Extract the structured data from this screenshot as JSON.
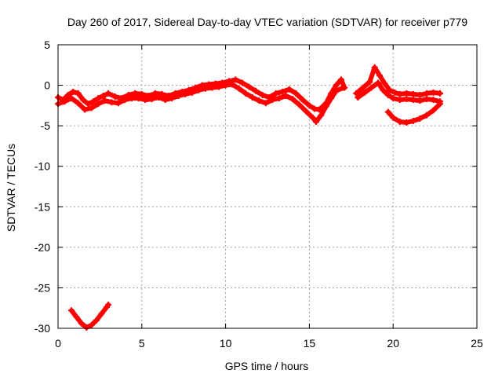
{
  "chart_data": {
    "type": "scatter",
    "title": "Day 260 of 2017, Sidereal Day-to-day VTEC variation (SDTVAR) for receiver p779",
    "xlabel": "GPS time / hours",
    "ylabel": "SDTVAR / TECUs",
    "xlim": [
      0,
      25
    ],
    "ylim": [
      -30,
      5
    ],
    "xticks": [
      0,
      5,
      10,
      15,
      20,
      25
    ],
    "yticks": [
      5,
      0,
      -5,
      -10,
      -15,
      -20,
      -25,
      -30
    ],
    "grid": true,
    "series": [
      {
        "name": "main-track-upper",
        "color": "#ff0000",
        "points": [
          [
            0.0,
            -1.5
          ],
          [
            0.3,
            -1.8
          ],
          [
            0.6,
            -1.2
          ],
          [
            0.9,
            -0.8
          ],
          [
            1.2,
            -1.0
          ],
          [
            1.5,
            -1.8
          ],
          [
            1.8,
            -2.3
          ],
          [
            2.1,
            -2.0
          ],
          [
            2.4,
            -1.6
          ],
          [
            2.7,
            -1.3
          ],
          [
            3.0,
            -1.0
          ],
          [
            3.4,
            -1.4
          ],
          [
            3.8,
            -1.6
          ],
          [
            4.2,
            -1.2
          ],
          [
            4.6,
            -1.0
          ],
          [
            5.0,
            -1.1
          ],
          [
            5.4,
            -1.3
          ],
          [
            5.8,
            -1.0
          ],
          [
            6.2,
            -1.1
          ],
          [
            6.6,
            -1.3
          ],
          [
            7.0,
            -1.0
          ],
          [
            7.4,
            -0.8
          ],
          [
            7.8,
            -0.6
          ],
          [
            8.2,
            -0.3
          ],
          [
            8.6,
            0.0
          ],
          [
            9.0,
            0.1
          ],
          [
            9.4,
            0.2
          ],
          [
            9.8,
            0.3
          ],
          [
            10.2,
            0.5
          ],
          [
            10.6,
            0.7
          ],
          [
            11.0,
            0.3
          ],
          [
            11.4,
            -0.2
          ],
          [
            11.8,
            -0.7
          ],
          [
            12.2,
            -1.2
          ],
          [
            12.6,
            -1.5
          ],
          [
            13.0,
            -1.0
          ],
          [
            13.4,
            -0.8
          ],
          [
            13.8,
            -0.5
          ],
          [
            14.2,
            -1.0
          ],
          [
            14.6,
            -1.8
          ],
          [
            15.0,
            -2.5
          ],
          [
            15.3,
            -2.9
          ],
          [
            15.6,
            -3.0
          ],
          [
            16.0,
            -2.2
          ],
          [
            16.3,
            -1.0
          ],
          [
            16.6,
            0.0
          ],
          [
            16.9,
            0.7
          ],
          [
            17.1,
            -0.3
          ]
        ]
      },
      {
        "name": "main-track-lower",
        "color": "#ff0000",
        "points": [
          [
            0.0,
            -2.3
          ],
          [
            0.4,
            -2.0
          ],
          [
            0.8,
            -1.6
          ],
          [
            1.2,
            -2.2
          ],
          [
            1.6,
            -3.0
          ],
          [
            2.0,
            -2.8
          ],
          [
            2.4,
            -2.3
          ],
          [
            2.8,
            -1.9
          ],
          [
            3.2,
            -2.1
          ],
          [
            3.6,
            -2.2
          ],
          [
            4.0,
            -1.8
          ],
          [
            4.4,
            -1.6
          ],
          [
            4.8,
            -1.6
          ],
          [
            5.2,
            -1.8
          ],
          [
            5.6,
            -1.7
          ],
          [
            6.0,
            -1.5
          ],
          [
            6.4,
            -1.8
          ],
          [
            6.8,
            -1.6
          ],
          [
            7.2,
            -1.3
          ],
          [
            7.6,
            -1.1
          ],
          [
            8.0,
            -0.9
          ],
          [
            8.4,
            -0.6
          ],
          [
            8.8,
            -0.4
          ],
          [
            9.2,
            -0.3
          ],
          [
            9.6,
            -0.2
          ],
          [
            10.0,
            0.0
          ],
          [
            10.4,
            0.1
          ],
          [
            10.8,
            -0.4
          ],
          [
            11.2,
            -1.0
          ],
          [
            11.6,
            -1.5
          ],
          [
            12.0,
            -1.9
          ],
          [
            12.4,
            -2.2
          ],
          [
            12.8,
            -1.8
          ],
          [
            13.2,
            -1.6
          ],
          [
            13.6,
            -1.3
          ],
          [
            14.0,
            -1.7
          ],
          [
            14.4,
            -2.4
          ],
          [
            14.8,
            -3.2
          ],
          [
            15.2,
            -4.0
          ],
          [
            15.4,
            -4.5
          ],
          [
            15.7,
            -3.7
          ],
          [
            16.0,
            -2.6
          ],
          [
            16.3,
            -1.6
          ],
          [
            16.6,
            -0.7
          ],
          [
            17.0,
            -0.3
          ]
        ]
      },
      {
        "name": "late-track-upper",
        "color": "#ff0000",
        "points": [
          [
            17.8,
            -1.0
          ],
          [
            18.2,
            -0.3
          ],
          [
            18.6,
            0.4
          ],
          [
            18.9,
            2.2
          ],
          [
            19.2,
            1.2
          ],
          [
            19.5,
            0.2
          ],
          [
            19.8,
            -0.6
          ],
          [
            20.1,
            -0.9
          ],
          [
            20.4,
            -1.1
          ],
          [
            20.8,
            -1.0
          ],
          [
            21.2,
            -1.1
          ],
          [
            21.6,
            -1.2
          ],
          [
            22.0,
            -1.0
          ],
          [
            22.4,
            -0.9
          ],
          [
            22.8,
            -1.0
          ]
        ]
      },
      {
        "name": "late-track-lower",
        "color": "#ff0000",
        "points": [
          [
            17.9,
            -1.5
          ],
          [
            18.3,
            -0.9
          ],
          [
            18.7,
            -0.3
          ],
          [
            19.1,
            0.3
          ],
          [
            19.4,
            -0.6
          ],
          [
            19.7,
            -1.2
          ],
          [
            20.0,
            -1.6
          ],
          [
            20.4,
            -1.8
          ],
          [
            20.8,
            -1.7
          ],
          [
            21.2,
            -1.8
          ],
          [
            21.6,
            -1.9
          ],
          [
            22.0,
            -1.7
          ],
          [
            22.4,
            -1.8
          ],
          [
            22.8,
            -2.0
          ]
        ]
      },
      {
        "name": "late-arc",
        "color": "#ff0000",
        "points": [
          [
            19.7,
            -3.3
          ],
          [
            20.0,
            -4.0
          ],
          [
            20.4,
            -4.5
          ],
          [
            20.8,
            -4.6
          ],
          [
            21.2,
            -4.4
          ],
          [
            21.6,
            -4.1
          ],
          [
            22.0,
            -3.7
          ],
          [
            22.4,
            -3.1
          ],
          [
            22.8,
            -2.3
          ]
        ]
      },
      {
        "name": "low-v",
        "color": "#ff0000",
        "points": [
          [
            0.8,
            -27.8
          ],
          [
            1.1,
            -28.6
          ],
          [
            1.4,
            -29.4
          ],
          [
            1.7,
            -29.9
          ],
          [
            2.0,
            -29.6
          ],
          [
            2.3,
            -29.0
          ],
          [
            2.6,
            -28.2
          ],
          [
            2.9,
            -27.4
          ],
          [
            3.0,
            -27.1
          ]
        ]
      }
    ]
  }
}
